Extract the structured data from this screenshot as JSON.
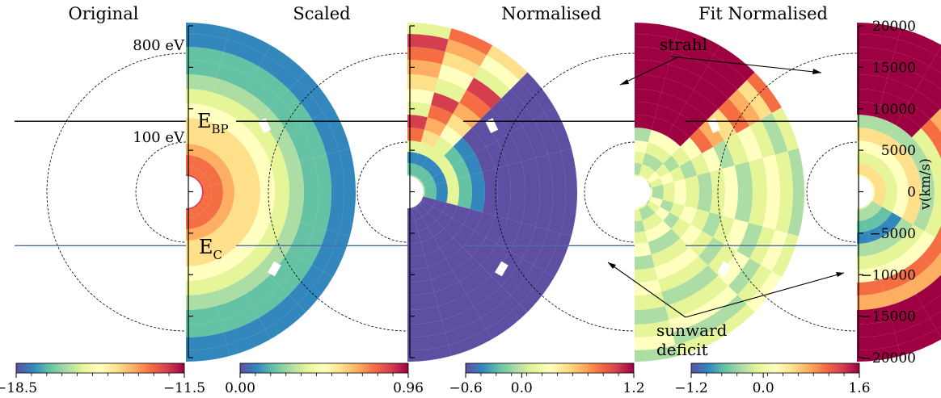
{
  "chart_data": [
    {
      "type": "heatmap",
      "title": "Original",
      "colorbar": {
        "min": -18.5,
        "max": -11.5,
        "tick_labels": [
          "−18.5",
          "−11.5"
        ],
        "tick_values": [
          -18.5,
          -11.5
        ]
      },
      "annotations": [
        "800 eV",
        "100 eV"
      ],
      "value_range": [
        -18.5,
        -11.5
      ]
    },
    {
      "type": "heatmap",
      "title": "Scaled",
      "colorbar": {
        "min": 0.0,
        "max": 0.96,
        "tick_labels": [
          "0.00",
          "0.96"
        ],
        "tick_values": [
          0.0,
          0.96
        ]
      },
      "annotations": [],
      "value_range": [
        0.0,
        0.96
      ]
    },
    {
      "type": "heatmap",
      "title": "Normalised",
      "colorbar": {
        "min": -0.6,
        "max": 1.2,
        "tick_labels": [
          "−0.6",
          "0.0",
          "1.2"
        ],
        "tick_values": [
          -0.6,
          0.0,
          1.2
        ]
      },
      "annotations": [],
      "value_range": [
        -0.6,
        1.2
      ]
    },
    {
      "type": "heatmap",
      "title": "Fit Normalised",
      "colorbar": {
        "min": -1.2,
        "max": 1.6,
        "tick_labels": [
          "−1.2",
          "0.0",
          "1.6"
        ],
        "tick_values": [
          -1.2,
          0.0,
          1.6
        ]
      },
      "annotations": [],
      "value_range": [
        -1.2,
        1.6
      ]
    }
  ],
  "shared_axis": {
    "label": "v(km/s)",
    "ylim": [
      -20000,
      20000
    ],
    "ticks": [
      20000,
      15000,
      10000,
      5000,
      0,
      -5000,
      -10000,
      -15000,
      -20000
    ],
    "tick_labels": [
      "20000",
      "15000",
      "10000",
      "5000",
      "0",
      "−5000",
      "−10000",
      "−15000",
      "−20000"
    ]
  },
  "energy_lines": {
    "E_BP": {
      "label": "E",
      "subscript": "BP",
      "v": 8500
    },
    "E_C": {
      "label": "E",
      "subscript": "C",
      "v": -6500
    }
  },
  "callouts": {
    "strahl": "strahl",
    "deficit_line1": "sunward",
    "deficit_line2": "deficit"
  },
  "colors": {
    "spectral": [
      "#5e4fa2",
      "#3288bd",
      "#66c2a5",
      "#abdda4",
      "#e6f598",
      "#ffffbf",
      "#fee08b",
      "#fdae61",
      "#f46d43",
      "#d53e4f",
      "#9e0142"
    ],
    "E_BP_line": "#000000",
    "E_C_line": "#4a6fa5"
  }
}
